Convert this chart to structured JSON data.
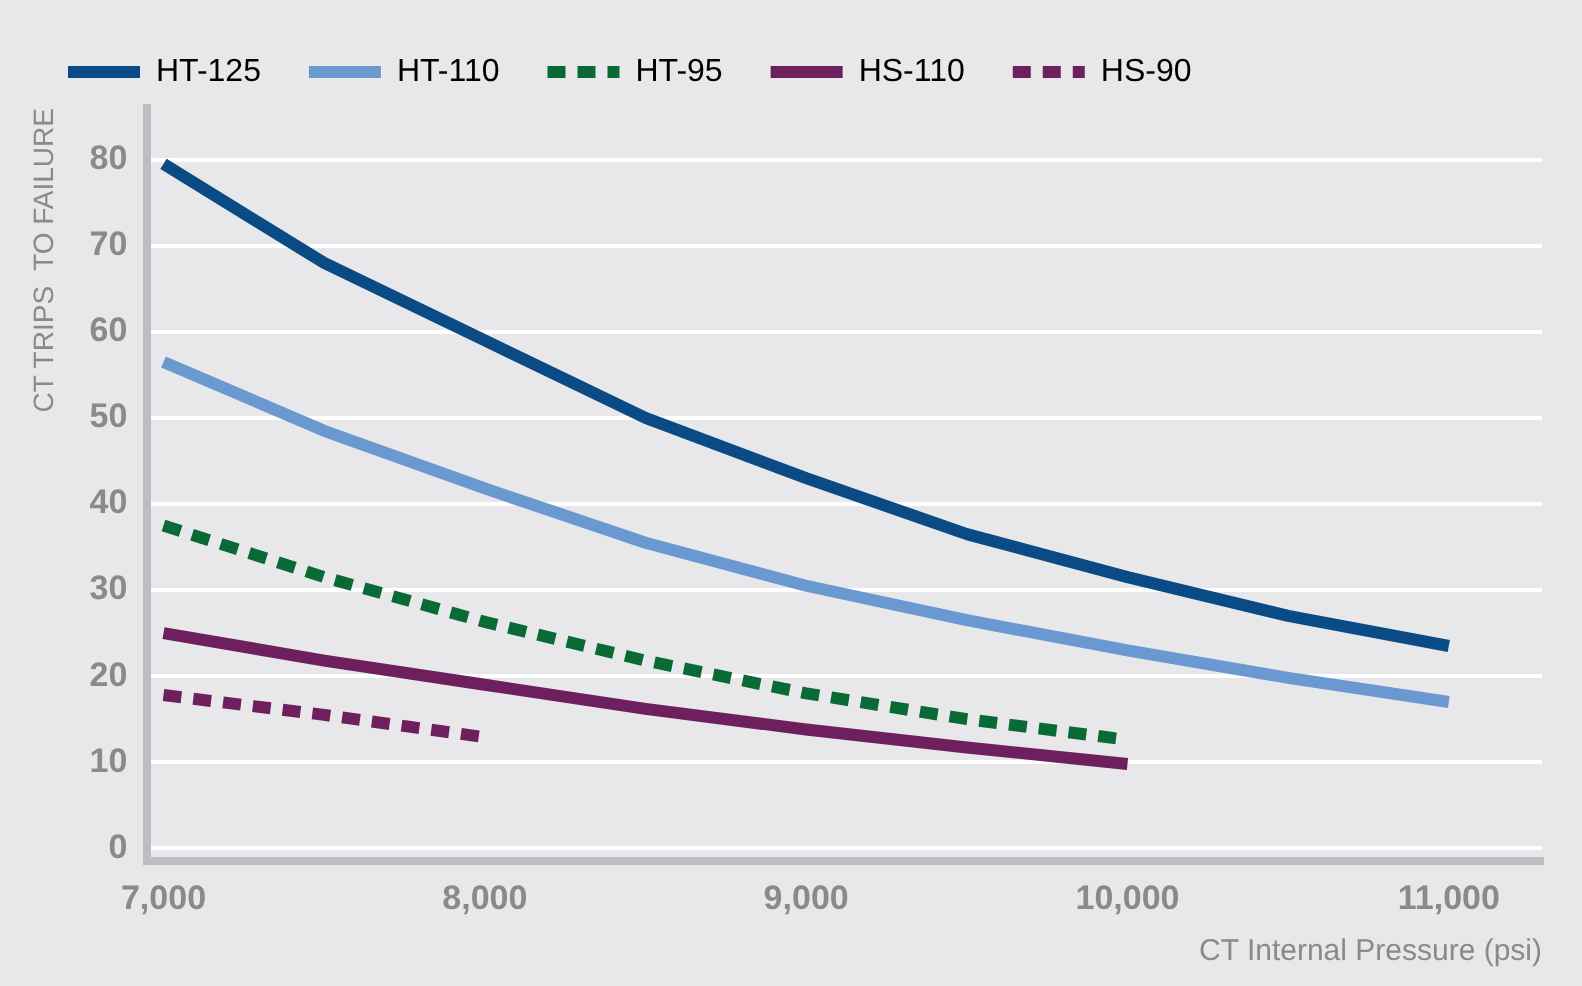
{
  "chart_data": {
    "type": "line",
    "xlabel": "CT Internal Pressure (psi)",
    "ylabel": "CT TRIPS  TO FAILURE",
    "x": [
      7000,
      7500,
      8000,
      8500,
      9000,
      9500,
      10000,
      10500,
      11000
    ],
    "series": [
      {
        "name": "HT-125",
        "color": "#0a4a85",
        "values": [
          79.5,
          68,
          59,
          50,
          43,
          36.5,
          31.5,
          27,
          23.5
        ]
      },
      {
        "name": "HT-110",
        "color": "#6a98d0",
        "values": [
          56.5,
          48.5,
          41.8,
          35.5,
          30.5,
          26.5,
          23,
          19.8,
          17
        ]
      },
      {
        "name": "HT-95",
        "color": "#0a6a35",
        "line_style": "dashed",
        "values": [
          37.5,
          31.5,
          26.3,
          21.8,
          18,
          15,
          12.6,
          null,
          null
        ]
      },
      {
        "name": "HS-110",
        "color": "#6e1f5e",
        "values": [
          25,
          21.8,
          19,
          16.2,
          13.8,
          11.7,
          9.8,
          null,
          null
        ]
      },
      {
        "name": "HS-90",
        "color": "#6e1f5e",
        "line_style": "dashed",
        "values": [
          17.8,
          15.5,
          12.9,
          null,
          null,
          null,
          null,
          null,
          null
        ]
      }
    ],
    "xlim": [
      6950,
      11290
    ],
    "ylim": [
      -1.5,
      86
    ],
    "xticks": [
      {
        "value": 7000,
        "label": "7,000"
      },
      {
        "value": 8000,
        "label": "8,000"
      },
      {
        "value": 9000,
        "label": "9,000"
      },
      {
        "value": 10000,
        "label": "10,000"
      },
      {
        "value": 11000,
        "label": "11,000"
      }
    ],
    "yticks": [
      0,
      10,
      20,
      30,
      40,
      50,
      60,
      70,
      80
    ],
    "grid": "y",
    "legend": "top left",
    "marker": "none",
    "line_style": "solid"
  }
}
